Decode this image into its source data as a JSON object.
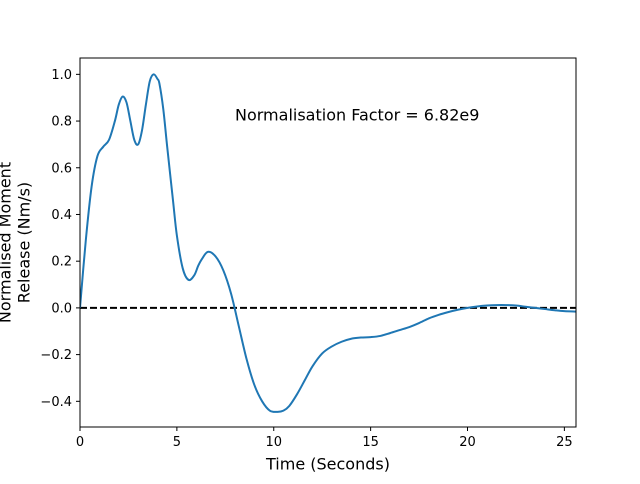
{
  "chart_data": {
    "type": "line",
    "title": "",
    "xlabel": "Time (Seconds)",
    "ylabel_lines": [
      "Normalised Moment",
      "Release (Nm/s)"
    ],
    "xlim": [
      0,
      25.6
    ],
    "ylim": [
      -0.51,
      1.07
    ],
    "xticks": [
      0,
      5,
      10,
      15,
      20,
      25
    ],
    "xtick_labels": [
      "0",
      "5",
      "10",
      "15",
      "20",
      "25"
    ],
    "yticks": [
      -0.4,
      -0.2,
      0.0,
      0.2,
      0.4,
      0.6,
      0.8,
      1.0
    ],
    "ytick_labels": [
      "−0.4",
      "−0.2",
      "0.0",
      "0.2",
      "0.4",
      "0.6",
      "0.8",
      "1.0"
    ],
    "grid": false,
    "annotation": "Normalisation Factor = 6.82e9",
    "reference_line": {
      "y": 0.0,
      "style": "dashed",
      "color": "#000000"
    },
    "series": [
      {
        "color": "#1f77b4",
        "x": [
          0,
          0.3,
          0.6,
          0.9,
          1.2,
          1.5,
          1.8,
          2.0,
          2.2,
          2.4,
          2.6,
          2.8,
          3.0,
          3.2,
          3.4,
          3.6,
          3.8,
          4.0,
          4.1,
          4.3,
          4.5,
          4.8,
          5.0,
          5.3,
          5.6,
          5.9,
          6.1,
          6.3,
          6.6,
          7.0,
          7.4,
          7.8,
          8.2,
          8.6,
          9.0,
          9.4,
          9.8,
          10.2,
          10.5,
          10.8,
          11.2,
          11.6,
          12.0,
          12.5,
          13.0,
          13.5,
          14.0,
          14.5,
          15.0,
          15.5,
          16.0,
          16.5,
          17.0,
          17.5,
          18.0,
          18.5,
          19.0,
          19.5,
          20.0,
          20.5,
          21.0,
          21.5,
          22.0,
          22.5,
          23.0,
          23.5,
          24.0,
          24.5,
          25.0,
          25.6
        ],
        "y": [
          0.0,
          0.29,
          0.52,
          0.65,
          0.69,
          0.72,
          0.8,
          0.87,
          0.905,
          0.88,
          0.8,
          0.72,
          0.7,
          0.76,
          0.87,
          0.97,
          1.0,
          0.98,
          0.96,
          0.85,
          0.69,
          0.46,
          0.31,
          0.17,
          0.12,
          0.14,
          0.18,
          0.21,
          0.24,
          0.22,
          0.16,
          0.06,
          -0.08,
          -0.22,
          -0.33,
          -0.4,
          -0.44,
          -0.445,
          -0.44,
          -0.42,
          -0.37,
          -0.31,
          -0.25,
          -0.195,
          -0.165,
          -0.145,
          -0.132,
          -0.127,
          -0.125,
          -0.12,
          -0.108,
          -0.095,
          -0.082,
          -0.065,
          -0.045,
          -0.03,
          -0.018,
          -0.008,
          0.0,
          0.006,
          0.01,
          0.012,
          0.012,
          0.01,
          0.005,
          0.0,
          -0.005,
          -0.01,
          -0.014,
          -0.016
        ]
      }
    ]
  }
}
